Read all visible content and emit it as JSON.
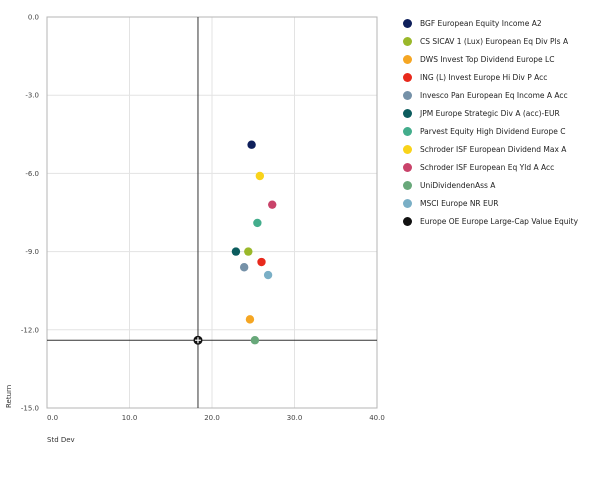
{
  "chart_data": {
    "type": "scatter",
    "title": "",
    "xlabel": "Std Dev",
    "ylabel": "Return",
    "xlim": [
      0,
      40
    ],
    "ylim": [
      -15,
      0
    ],
    "xticks": [
      "0.0",
      "10.0",
      "20.0",
      "30.0",
      "40.0"
    ],
    "yticks": [
      "0.0",
      "-3.0",
      "-6.0",
      "-9.0",
      "-12.0",
      "-15.0"
    ],
    "grid": true,
    "legend_position": "right",
    "crosshair": {
      "x": 18.3,
      "y": -12.4
    },
    "series": [
      {
        "name": "BGF European Equity Income A2",
        "color": "#0e1f5b",
        "x": 24.8,
        "y": -4.9
      },
      {
        "name": "CS SICAV 1 (Lux) European Eq Div Pls A",
        "color": "#9ab82a",
        "x": 24.4,
        "y": -9.0
      },
      {
        "name": "DWS Invest Top Dividend Europe LC",
        "color": "#f5a623",
        "x": 24.6,
        "y": -11.6
      },
      {
        "name": "ING (L) Invest Europe Hi Div P Acc",
        "color": "#e8291c",
        "x": 26.0,
        "y": -9.4
      },
      {
        "name": "Invesco Pan European Eq Income A Acc",
        "color": "#7591a8",
        "x": 23.9,
        "y": -9.6
      },
      {
        "name": "JPM Europe Strategic Div A (acc)-EUR",
        "color": "#0c5c5e",
        "x": 22.9,
        "y": -9.0
      },
      {
        "name": "Parvest Equity High Dividend Europe C",
        "color": "#43ad8c",
        "x": 25.5,
        "y": -7.9
      },
      {
        "name": "Schroder ISF European Dividend Max A",
        "color": "#f9d31a",
        "x": 25.8,
        "y": -6.1
      },
      {
        "name": "Schroder ISF European Eq Yld A Acc",
        "color": "#c9436a",
        "x": 27.3,
        "y": -7.2
      },
      {
        "name": "UniDividendenAss A",
        "color": "#68a87a",
        "x": 25.2,
        "y": -12.4
      },
      {
        "name": "MSCI Europe NR EUR",
        "color": "#7aafc6",
        "x": 26.8,
        "y": -9.9
      },
      {
        "name": "Europe OE Europe Large-Cap Value Equity",
        "color": "#111111",
        "x": 18.3,
        "y": -12.4
      }
    ]
  }
}
